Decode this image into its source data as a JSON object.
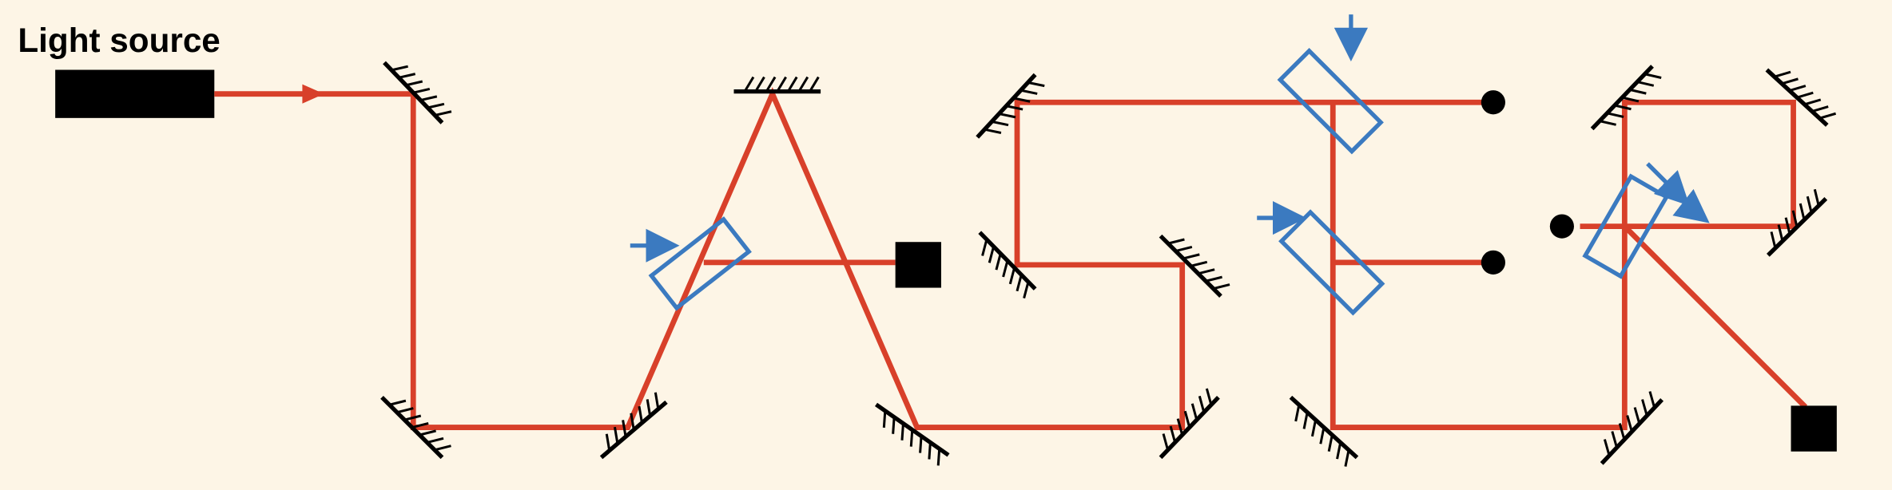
{
  "label": "Light source"
}
